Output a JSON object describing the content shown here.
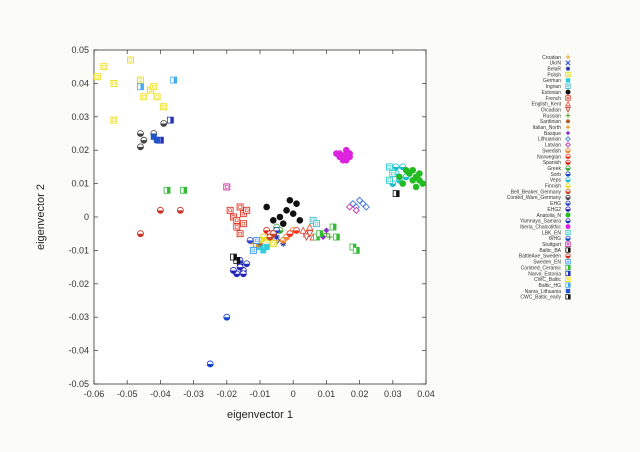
{
  "chart_data": {
    "type": "scatter",
    "xlabel": "eigenvector 1",
    "ylabel": "eigenvector 2",
    "xlim": [
      -0.06,
      0.04
    ],
    "ylim": [
      -0.05,
      0.05
    ],
    "xticks": [
      "-0.06",
      "-0.05",
      "-0.04",
      "-0.03",
      "-0.02",
      "-0.01",
      "0",
      "0.01",
      "0.02",
      "0.03",
      "0.04"
    ],
    "yticks": [
      "-0.05",
      "-0.04",
      "-0.03",
      "-0.02",
      "-0.01",
      "0",
      "0.01",
      "0.02",
      "0.03",
      "0.04",
      "0.05"
    ],
    "grid": false,
    "legend_position": "right",
    "series": [
      {
        "name": "Croatian",
        "color": "#e8a33a",
        "marker": "plus",
        "points": [
          [
            -0.006,
            -0.006
          ],
          [
            -0.005,
            -0.007
          ]
        ]
      },
      {
        "name": "UkrN",
        "color": "#3355cc",
        "marker": "x",
        "points": [
          [
            -0.004,
            -0.007
          ]
        ]
      },
      {
        "name": "BelaR",
        "color": "#2233aa",
        "marker": "star",
        "points": [
          [
            -0.005,
            -0.006
          ],
          [
            -0.003,
            -0.008
          ]
        ]
      },
      {
        "name": "Polish",
        "color": "#dddd22",
        "marker": "square-open",
        "points": [
          [
            -0.007,
            -0.007
          ],
          [
            -0.008,
            -0.008
          ],
          [
            -0.006,
            -0.008
          ]
        ]
      },
      {
        "name": "German",
        "color": "#33ccdd",
        "marker": "square",
        "points": [
          [
            -0.01,
            -0.009
          ],
          [
            -0.009,
            -0.01
          ],
          [
            -0.008,
            -0.009
          ]
        ]
      },
      {
        "name": "Ingrian",
        "color": "#44bbcc",
        "marker": "square-open",
        "points": [
          [
            0.006,
            -0.001
          ],
          [
            0.007,
            -0.002
          ]
        ]
      },
      {
        "name": "Estonian",
        "color": "#111111",
        "marker": "circle",
        "points": [
          [
            -0.008,
            0.003
          ],
          [
            -0.006,
            -0.001
          ],
          [
            -0.004,
            0.0
          ],
          [
            -0.002,
            0.002
          ],
          [
            0.0,
            0.001
          ],
          [
            0.001,
            0.004
          ],
          [
            -0.001,
            0.005
          ],
          [
            -0.003,
            -0.002
          ],
          [
            0.002,
            -0.001
          ]
        ]
      },
      {
        "name": "French",
        "color": "#dd3322",
        "marker": "square-open",
        "points": [
          [
            -0.019,
            0.002
          ],
          [
            -0.018,
            0.0
          ],
          [
            -0.017,
            -0.001
          ],
          [
            -0.016,
            0.003
          ],
          [
            -0.015,
            0.001
          ],
          [
            -0.017,
            -0.003
          ],
          [
            -0.016,
            -0.005
          ],
          [
            -0.014,
            0.002
          ],
          [
            -0.015,
            -0.002
          ]
        ]
      },
      {
        "name": "English_Kent",
        "color": "#ee5544",
        "marker": "triangle-open",
        "points": [
          [
            0.003,
            -0.004
          ],
          [
            0.004,
            -0.005
          ],
          [
            0.005,
            -0.003
          ],
          [
            0.006,
            -0.006
          ]
        ]
      },
      {
        "name": "Orcadian",
        "color": "#cc4433",
        "marker": "triangle-down-open",
        "points": [
          [
            0.004,
            -0.006
          ],
          [
            0.005,
            -0.005
          ]
        ]
      },
      {
        "name": "Russian",
        "color": "#55aa33",
        "marker": "plus",
        "points": [
          [
            0.01,
            -0.005
          ],
          [
            0.011,
            -0.006
          ]
        ]
      },
      {
        "name": "Sardinian",
        "color": "#aa5522",
        "marker": "star",
        "points": [
          [
            -0.011,
            -0.007
          ],
          [
            -0.01,
            -0.008
          ]
        ]
      },
      {
        "name": "Italian_North",
        "color": "#dd9922",
        "marker": "plus",
        "points": [
          [
            -0.012,
            -0.008
          ],
          [
            -0.011,
            -0.009
          ]
        ]
      },
      {
        "name": "Basque",
        "color": "#8833cc",
        "marker": "diamond",
        "points": [
          [
            0.009,
            -0.006
          ],
          [
            0.01,
            -0.004
          ]
        ]
      },
      {
        "name": "Lithuanian",
        "color": "#4477dd",
        "marker": "diamond-open",
        "points": [
          [
            0.018,
            0.004
          ],
          [
            0.019,
            0.003
          ],
          [
            0.02,
            0.005
          ],
          [
            0.021,
            0.004
          ],
          [
            0.022,
            0.003
          ]
        ]
      },
      {
        "name": "Latvian",
        "color": "#cc33aa",
        "marker": "diamond-open",
        "points": [
          [
            0.017,
            0.003
          ],
          [
            0.019,
            0.002
          ]
        ]
      },
      {
        "name": "Swedish",
        "color": "#ee8833",
        "marker": "circle-half",
        "points": [
          [
            -0.003,
            -0.007
          ],
          [
            -0.002,
            -0.006
          ],
          [
            0.0,
            -0.004
          ]
        ]
      },
      {
        "name": "Norwegian",
        "color": "#ee3322",
        "marker": "circle-half",
        "points": [
          [
            -0.001,
            -0.005
          ],
          [
            0.001,
            -0.004
          ]
        ]
      },
      {
        "name": "Spanish",
        "color": "#dd2211",
        "marker": "circle-half",
        "points": [
          [
            -0.009,
            -0.006
          ],
          [
            -0.008,
            -0.004
          ],
          [
            -0.007,
            -0.005
          ]
        ]
      },
      {
        "name": "Greek",
        "color": "#33aa33",
        "marker": "circle-half",
        "points": [
          [
            -0.005,
            -0.003
          ],
          [
            -0.004,
            -0.004
          ]
        ]
      },
      {
        "name": "Sorb",
        "color": "#2244cc",
        "marker": "circle-half",
        "points": [
          [
            -0.006,
            -0.005
          ],
          [
            -0.005,
            -0.004
          ]
        ]
      },
      {
        "name": "Veps",
        "color": "#22bbcc",
        "marker": "circle-half",
        "points": [
          [
            0.031,
            0.013
          ],
          [
            0.032,
            0.011
          ],
          [
            0.033,
            0.015
          ],
          [
            0.034,
            0.012
          ],
          [
            0.03,
            0.01
          ],
          [
            0.031,
            0.015
          ]
        ]
      },
      {
        "name": "Finnish",
        "color": "#eedd22",
        "marker": "circle-half",
        "points": [
          [
            -0.01,
            -0.007
          ],
          [
            -0.009,
            -0.006
          ]
        ]
      },
      {
        "name": "Bell_Beaker_Germany",
        "color": "#cc4422",
        "marker": "circle-half",
        "points": [
          [
            -0.007,
            -0.006
          ],
          [
            -0.006,
            -0.005
          ]
        ]
      },
      {
        "name": "Corded_Ware_Germany",
        "color": "#444444",
        "marker": "circle-half",
        "points": [
          [
            -0.046,
            0.025
          ],
          [
            -0.045,
            0.023
          ],
          [
            -0.042,
            0.025
          ],
          [
            -0.041,
            0.023
          ],
          [
            -0.046,
            0.021
          ],
          [
            -0.039,
            0.028
          ]
        ]
      },
      {
        "name": "EHG",
        "color": "#3344cc",
        "marker": "circle-half",
        "points": [
          [
            -0.013,
            -0.007
          ]
        ]
      },
      {
        "name": "EHG2",
        "color": "#2222bb",
        "marker": "circle-half",
        "points": [
          [
            -0.016,
            -0.014
          ],
          [
            -0.015,
            -0.016
          ],
          [
            -0.017,
            -0.017
          ],
          [
            -0.018,
            -0.016
          ],
          [
            -0.015,
            -0.017
          ],
          [
            -0.016,
            -0.015
          ]
        ]
      },
      {
        "name": "Anatolia_N",
        "color": "#22bb22",
        "marker": "circle",
        "points": [
          [
            0.033,
            0.01
          ],
          [
            0.035,
            0.013
          ],
          [
            0.036,
            0.014
          ],
          [
            0.037,
            0.012
          ],
          [
            0.038,
            0.011
          ],
          [
            0.039,
            0.01
          ],
          [
            0.036,
            0.011
          ],
          [
            0.034,
            0.014
          ],
          [
            0.037,
            0.009
          ],
          [
            0.038,
            0.013
          ],
          [
            0.032,
            0.012
          ]
        ]
      },
      {
        "name": "Yamnaya_Samara",
        "color": "#2233bb",
        "marker": "circle-half",
        "points": [
          [
            -0.016,
            -0.013
          ],
          [
            -0.014,
            -0.014
          ]
        ]
      },
      {
        "name": "Iberia_Chalcolithic",
        "color": "#dd22dd",
        "marker": "circle",
        "points": [
          [
            0.014,
            0.019
          ],
          [
            0.015,
            0.018
          ],
          [
            0.016,
            0.019
          ],
          [
            0.017,
            0.018
          ],
          [
            0.015,
            0.017
          ],
          [
            0.016,
            0.02
          ],
          [
            0.014,
            0.018
          ],
          [
            0.017,
            0.019
          ],
          [
            0.013,
            0.019
          ],
          [
            0.016,
            0.017
          ]
        ]
      },
      {
        "name": "LBK_EN",
        "color": "#33cccc",
        "marker": "square-open",
        "points": [
          [
            0.029,
            0.011
          ],
          [
            0.03,
            0.013
          ],
          [
            0.029,
            0.015
          ]
        ]
      },
      {
        "name": "WHG",
        "color": "#1144cc",
        "marker": "circle-half",
        "points": [
          [
            -0.02,
            -0.03
          ],
          [
            -0.025,
            -0.044
          ]
        ]
      },
      {
        "name": "Stuttgart",
        "color": "#cc2299",
        "marker": "square-open",
        "points": [
          [
            -0.02,
            0.009
          ]
        ]
      },
      {
        "name": "Baltic_BA",
        "color": "#111111",
        "marker": "square-half",
        "points": [
          [
            -0.017,
            -0.013
          ],
          [
            0.031,
            0.007
          ]
        ]
      },
      {
        "name": "BattleAxe_Sweden",
        "color": "#cc3322",
        "marker": "circle-half",
        "points": [
          [
            -0.04,
            0.002
          ],
          [
            -0.034,
            0.002
          ],
          [
            -0.046,
            -0.005
          ]
        ]
      },
      {
        "name": "Sweden_EN",
        "color": "#3399ff",
        "marker": "square-open",
        "points": [
          [
            -0.012,
            -0.01
          ],
          [
            -0.011,
            -0.007
          ]
        ]
      },
      {
        "name": "Combed_Ceramic",
        "color": "#33bb33",
        "marker": "square-half",
        "points": [
          [
            -0.038,
            0.008
          ],
          [
            -0.033,
            0.008
          ],
          [
            0.007,
            -0.006
          ],
          [
            0.008,
            -0.005
          ],
          [
            0.012,
            -0.003
          ],
          [
            0.013,
            -0.006
          ],
          [
            0.018,
            -0.009
          ],
          [
            0.019,
            -0.01
          ]
        ]
      },
      {
        "name": "Narva_Estonia",
        "color": "#2233bb",
        "marker": "square-half",
        "points": [
          [
            -0.04,
            0.023
          ],
          [
            -0.037,
            0.029
          ]
        ]
      },
      {
        "name": "CWC_Baltic",
        "color": "#eedd11",
        "marker": "square-open",
        "points": [
          [
            -0.059,
            0.042
          ],
          [
            -0.057,
            0.045
          ],
          [
            -0.054,
            0.04
          ],
          [
            -0.049,
            0.047
          ],
          [
            -0.046,
            0.041
          ],
          [
            -0.045,
            0.036
          ],
          [
            -0.043,
            0.038
          ],
          [
            -0.041,
            0.036
          ],
          [
            -0.039,
            0.033
          ],
          [
            -0.054,
            0.029
          ],
          [
            -0.042,
            0.039
          ]
        ]
      },
      {
        "name": "Baltic_HG",
        "color": "#44aaee",
        "marker": "square-half",
        "points": [
          [
            -0.036,
            0.041
          ],
          [
            -0.046,
            0.039
          ]
        ]
      },
      {
        "name": "Narva_Lithuania",
        "color": "#2255cc",
        "marker": "square",
        "points": [
          [
            -0.042,
            0.024
          ],
          [
            -0.041,
            0.023
          ]
        ]
      },
      {
        "name": "CWC_Baltic_early",
        "color": "#111111",
        "marker": "square-half",
        "points": [
          [
            -0.018,
            -0.012
          ]
        ]
      }
    ]
  }
}
